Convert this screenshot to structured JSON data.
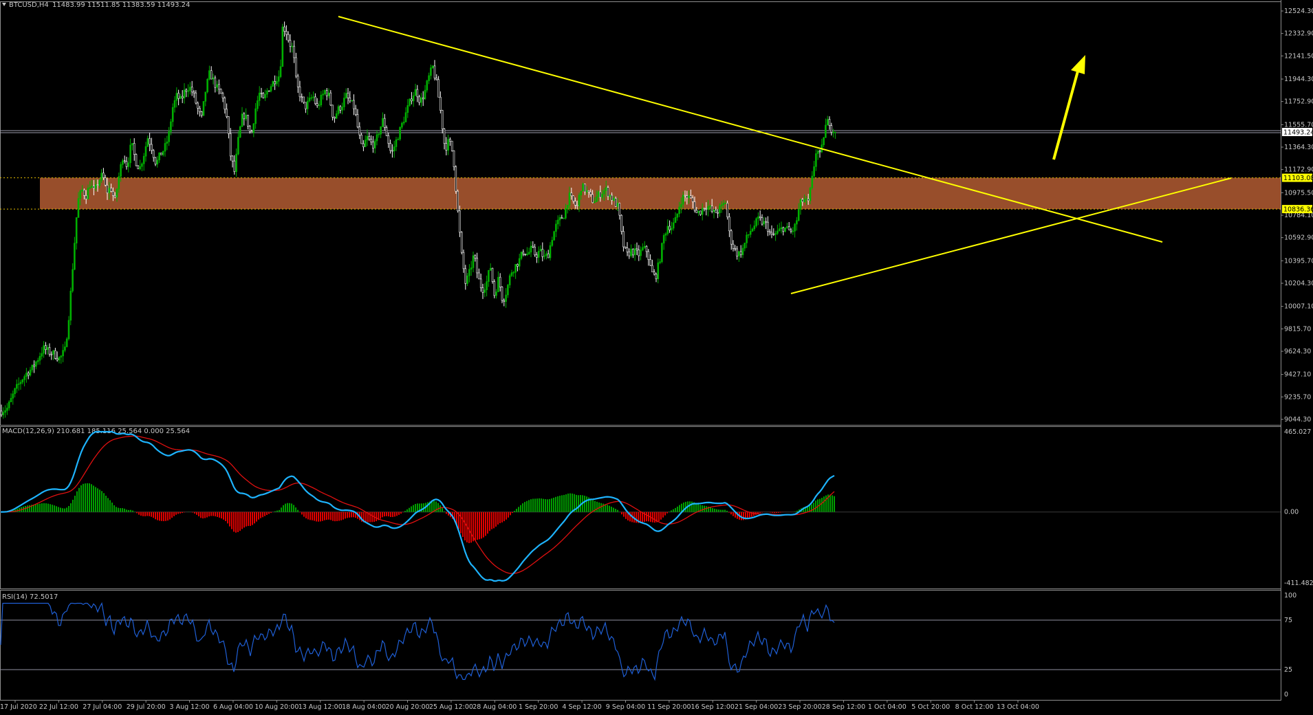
{
  "header": {
    "symbol": "BTCUSD,H4",
    "ohlc": "11483.99 11511.85 11383.59 11493.24"
  },
  "colors": {
    "background": "#000000",
    "bull_candle": "#00b000",
    "bear_candle": "#ffffff",
    "zone": "#a0522d",
    "trendline": "#ffff00",
    "macd_line": "#1eb4ff",
    "signal_line": "#e01010",
    "hist_pos": "#00a000",
    "hist_neg": "#e00000",
    "rsi_line": "#1f5fd6",
    "level_line": "#8f8f9f",
    "axis_text": "#c8c8c8"
  },
  "price_axis": {
    "labels": [
      "12524.30",
      "12332.90",
      "12141.50",
      "11944.30",
      "11752.90",
      "11555.70",
      "11364.30",
      "11172.90",
      "10975.50",
      "10784.10",
      "10592.90",
      "10395.70",
      "10204.30",
      "10007.10",
      "9815.70",
      "9624.30",
      "9427.10",
      "9235.70",
      "9044.30"
    ],
    "current_price": "11493.24",
    "zone_top": "11103.08",
    "zone_bottom": "10836.36"
  },
  "time_axis": {
    "labels": [
      "17 Jul 2020",
      "22 Jul 12:00",
      "27 Jul 04:00",
      "29 Jul 20:00",
      "3 Aug 12:00",
      "6 Aug 04:00",
      "10 Aug 20:00",
      "13 Aug 12:00",
      "18 Aug 04:00",
      "20 Aug 20:00",
      "25 Aug 12:00",
      "28 Aug 04:00",
      "1 Sep 20:00",
      "4 Sep 12:00",
      "9 Sep 04:00",
      "11 Sep 20:00",
      "16 Sep 12:00",
      "21 Sep 04:00",
      "23 Sep 20:00",
      "28 Sep 12:00",
      "1 Oct 04:00",
      "5 Oct 20:00",
      "8 Oct 12:00",
      "13 Oct 04:00"
    ]
  },
  "macd": {
    "title": "MACD(12,26,9) 210.681 185.116 25.564 0.000 25.564",
    "axis_labels": [
      "465.027",
      "0.00",
      "-411.482"
    ]
  },
  "rsi": {
    "title": "RSI(14) 72.5017",
    "axis_labels": [
      "100",
      "75",
      "25",
      "0"
    ]
  },
  "chart_data": {
    "type": "candlestick",
    "symbol": "BTCUSD",
    "timeframe": "H4",
    "last_bar": {
      "open": 11483.99,
      "high": 11511.85,
      "low": 11383.59,
      "close": 11493.24
    },
    "y_range": [
      9044.3,
      12620
    ],
    "x_range": [
      "17 Jul 2020",
      "13 Oct 04:00"
    ],
    "close_path": [
      [
        0,
        9115
      ],
      [
        10,
        9140
      ],
      [
        20,
        9280
      ],
      [
        30,
        9380
      ],
      [
        38,
        9440
      ],
      [
        46,
        9480
      ],
      [
        54,
        9560
      ],
      [
        62,
        9650
      ],
      [
        70,
        9620
      ],
      [
        78,
        9600
      ],
      [
        86,
        9560
      ],
      [
        94,
        9640
      ],
      [
        100,
        9980
      ],
      [
        106,
        10450
      ],
      [
        112,
        10900
      ],
      [
        118,
        11000
      ],
      [
        124,
        10950
      ],
      [
        130,
        11050
      ],
      [
        136,
        10980
      ],
      [
        142,
        11070
      ],
      [
        148,
        11130
      ],
      [
        154,
        10980
      ],
      [
        160,
        11020
      ],
      [
        166,
        10900
      ],
      [
        172,
        11120
      ],
      [
        178,
        11300
      ],
      [
        184,
        11200
      ],
      [
        190,
        11400
      ],
      [
        196,
        11250
      ],
      [
        202,
        11180
      ],
      [
        208,
        11300
      ],
      [
        214,
        11450
      ],
      [
        220,
        11350
      ],
      [
        226,
        11220
      ],
      [
        232,
        11300
      ],
      [
        238,
        11350
      ],
      [
        244,
        11450
      ],
      [
        250,
        11700
      ],
      [
        256,
        11800
      ],
      [
        262,
        11760
      ],
      [
        268,
        11850
      ],
      [
        274,
        11880
      ],
      [
        280,
        11820
      ],
      [
        286,
        11700
      ],
      [
        292,
        11600
      ],
      [
        298,
        11850
      ],
      [
        304,
        12000
      ],
      [
        310,
        11920
      ],
      [
        316,
        11850
      ],
      [
        322,
        11800
      ],
      [
        328,
        11650
      ],
      [
        334,
        11300
      ],
      [
        340,
        11150
      ],
      [
        346,
        11450
      ],
      [
        352,
        11650
      ],
      [
        358,
        11600
      ],
      [
        364,
        11450
      ],
      [
        370,
        11680
      ],
      [
        376,
        11820
      ],
      [
        382,
        11760
      ],
      [
        388,
        11850
      ],
      [
        394,
        11900
      ],
      [
        400,
        11950
      ],
      [
        406,
        11980
      ],
      [
        410,
        12400
      ],
      [
        415,
        12350
      ],
      [
        420,
        12250
      ],
      [
        425,
        12200
      ],
      [
        430,
        11900
      ],
      [
        436,
        11800
      ],
      [
        442,
        11700
      ],
      [
        448,
        11750
      ],
      [
        454,
        11800
      ],
      [
        460,
        11700
      ],
      [
        466,
        11780
      ],
      [
        472,
        11850
      ],
      [
        478,
        11790
      ],
      [
        484,
        11600
      ],
      [
        490,
        11680
      ],
      [
        496,
        11720
      ],
      [
        502,
        11800
      ],
      [
        508,
        11750
      ],
      [
        514,
        11700
      ],
      [
        520,
        11500
      ],
      [
        526,
        11320
      ],
      [
        532,
        11450
      ],
      [
        538,
        11400
      ],
      [
        544,
        11380
      ],
      [
        550,
        11500
      ],
      [
        556,
        11600
      ],
      [
        562,
        11450
      ],
      [
        568,
        11300
      ],
      [
        574,
        11400
      ],
      [
        580,
        11500
      ],
      [
        586,
        11600
      ],
      [
        592,
        11700
      ],
      [
        598,
        11800
      ],
      [
        604,
        11850
      ],
      [
        610,
        11750
      ],
      [
        616,
        11820
      ],
      [
        622,
        11950
      ],
      [
        628,
        12050
      ],
      [
        634,
        11900
      ],
      [
        640,
        11650
      ],
      [
        646,
        11350
      ],
      [
        652,
        11420
      ],
      [
        658,
        11300
      ],
      [
        664,
        10850
      ],
      [
        670,
        10450
      ],
      [
        676,
        10200
      ],
      [
        682,
        10300
      ],
      [
        688,
        10450
      ],
      [
        694,
        10250
      ],
      [
        700,
        10150
      ],
      [
        706,
        10200
      ],
      [
        712,
        10350
      ],
      [
        718,
        10100
      ],
      [
        724,
        10250
      ],
      [
        730,
        10050
      ],
      [
        736,
        10150
      ],
      [
        742,
        10300
      ],
      [
        748,
        10350
      ],
      [
        754,
        10400
      ],
      [
        760,
        10480
      ],
      [
        766,
        10450
      ],
      [
        772,
        10500
      ],
      [
        778,
        10440
      ],
      [
        784,
        10480
      ],
      [
        790,
        10420
      ],
      [
        796,
        10450
      ],
      [
        802,
        10600
      ],
      [
        808,
        10700
      ],
      [
        814,
        10750
      ],
      [
        820,
        10800
      ],
      [
        826,
        10950
      ],
      [
        832,
        10900
      ],
      [
        838,
        10850
      ],
      [
        844,
        11030
      ],
      [
        850,
        11000
      ],
      [
        856,
        10950
      ],
      [
        862,
        10900
      ],
      [
        868,
        10950
      ],
      [
        874,
        10980
      ],
      [
        880,
        11000
      ],
      [
        886,
        10950
      ],
      [
        892,
        10900
      ],
      [
        898,
        10850
      ],
      [
        904,
        10550
      ],
      [
        910,
        10440
      ],
      [
        916,
        10480
      ],
      [
        922,
        10470
      ],
      [
        928,
        10450
      ],
      [
        934,
        10500
      ],
      [
        940,
        10480
      ],
      [
        946,
        10300
      ],
      [
        952,
        10250
      ],
      [
        958,
        10400
      ],
      [
        964,
        10600
      ],
      [
        970,
        10700
      ],
      [
        976,
        10680
      ],
      [
        982,
        10750
      ],
      [
        988,
        10900
      ],
      [
        994,
        10950
      ],
      [
        1000,
        10940
      ],
      [
        1006,
        10900
      ],
      [
        1012,
        10800
      ],
      [
        1018,
        10820
      ],
      [
        1024,
        10870
      ],
      [
        1030,
        10850
      ],
      [
        1036,
        10800
      ],
      [
        1042,
        10820
      ],
      [
        1048,
        10850
      ],
      [
        1054,
        10900
      ],
      [
        1060,
        10600
      ],
      [
        1066,
        10500
      ],
      [
        1072,
        10450
      ],
      [
        1078,
        10480
      ],
      [
        1084,
        10580
      ],
      [
        1090,
        10650
      ],
      [
        1096,
        10700
      ],
      [
        1102,
        10750
      ],
      [
        1108,
        10720
      ],
      [
        1114,
        10700
      ],
      [
        1120,
        10600
      ],
      [
        1126,
        10620
      ],
      [
        1132,
        10650
      ],
      [
        1138,
        10680
      ],
      [
        1144,
        10660
      ],
      [
        1150,
        10640
      ],
      [
        1156,
        10700
      ],
      [
        1162,
        10880
      ],
      [
        1168,
        10920
      ],
      [
        1174,
        10880
      ],
      [
        1180,
        11100
      ],
      [
        1186,
        11350
      ],
      [
        1192,
        11280
      ],
      [
        1198,
        11520
      ],
      [
        1204,
        11600
      ],
      [
        1210,
        11480
      ],
      [
        1214,
        11493
      ]
    ],
    "support_resistance_zone": {
      "top": 11103.08,
      "bottom": 10836.36
    },
    "annotations": [
      "descending trendline from mid-Aug high",
      "ascending trendline from late-Sep low",
      "breakout arrow up"
    ],
    "macd": {
      "params": "12,26,9",
      "values": {
        "macd": 210.681,
        "signal": 185.116,
        "histogram": 25.564
      },
      "y_range": [
        -411.482,
        465.027
      ]
    },
    "rsi": {
      "period": 14,
      "value": 72.5017,
      "y_range": [
        0,
        100
      ],
      "levels": [
        25,
        75
      ]
    }
  }
}
